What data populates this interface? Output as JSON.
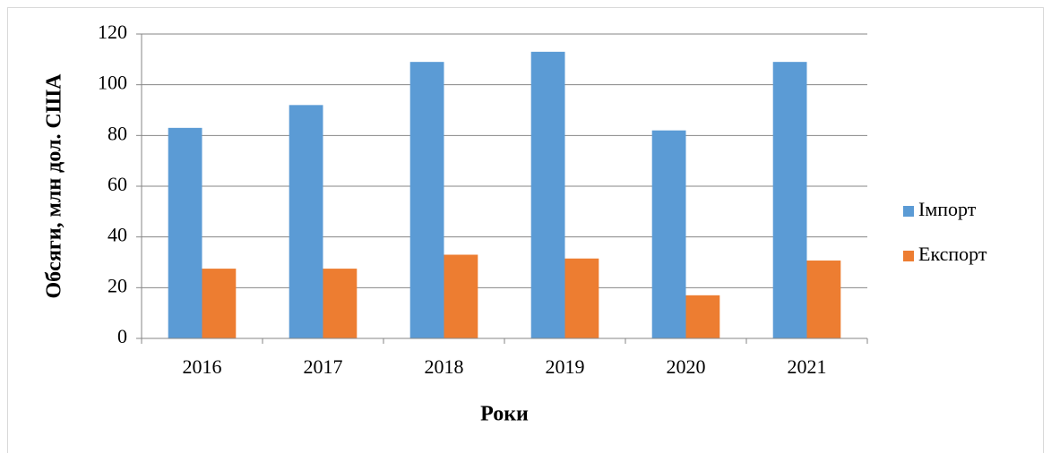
{
  "chart_data": {
    "type": "bar",
    "x_label": "Роки",
    "y_label": "Обсяги, млн дол. США",
    "categories": [
      "2016",
      "2017",
      "2018",
      "2019",
      "2020",
      "2021"
    ],
    "series": [
      {
        "name": "Імпорт",
        "color": "#5b9bd5",
        "values": [
          83,
          92,
          109,
          113,
          82,
          109
        ]
      },
      {
        "name": "Експорт",
        "color": "#ed7d31",
        "values": [
          27.5,
          27.5,
          33,
          31.5,
          17,
          30.7
        ]
      }
    ],
    "ylim": [
      0,
      120
    ],
    "yticks": [
      0,
      20,
      40,
      60,
      80,
      100,
      120
    ],
    "grid": true,
    "legend": "right"
  }
}
